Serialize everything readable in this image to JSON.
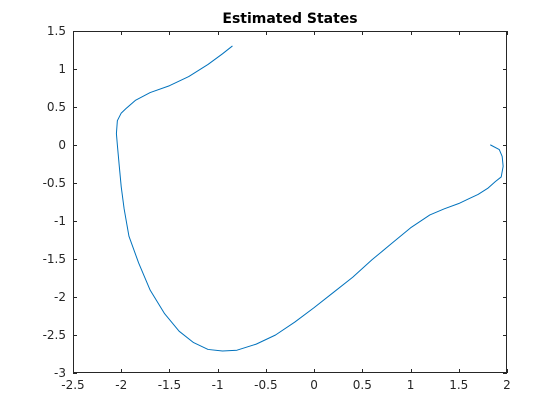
{
  "chart_data": {
    "type": "line",
    "title": "Estimated States",
    "xlabel": "",
    "ylabel": "",
    "xlim": [
      -2.5,
      2
    ],
    "ylim": [
      -3,
      1.5
    ],
    "grid": false,
    "xticks": [
      -2.5,
      -2,
      -1.5,
      -1,
      -0.5,
      0,
      0.5,
      1,
      1.5,
      2
    ],
    "xtick_labels": [
      "-2.5",
      "-2",
      "-1.5",
      "-1",
      "-0.5",
      "0",
      "0.5",
      "1",
      "1.5",
      "2"
    ],
    "yticks": [
      1.5,
      1,
      0.5,
      0,
      -0.5,
      -1,
      -1.5,
      -2,
      -2.5,
      -3
    ],
    "ytick_labels": [
      "1.5",
      "1",
      "0.5",
      "0",
      "-0.5",
      "-1",
      "-1.5",
      "-2",
      "-2.5",
      "-3"
    ],
    "series": [
      {
        "color": "#0072BD",
        "x": [
          1.83,
          1.92,
          1.95,
          1.96,
          1.94,
          1.88,
          1.8,
          1.7,
          1.6,
          1.5,
          1.35,
          1.2,
          1.0,
          0.8,
          0.6,
          0.4,
          0.2,
          0.0,
          -0.2,
          -0.4,
          -0.6,
          -0.8,
          -0.95,
          -1.1,
          -1.25,
          -1.4,
          -1.55,
          -1.7,
          -1.82,
          -1.92,
          -1.97,
          -2.0,
          -2.02,
          -2.04,
          -2.05,
          -2.04,
          -2.0,
          -1.95,
          -1.85,
          -1.7,
          -1.5,
          -1.3,
          -1.1,
          -0.95,
          -0.85
        ],
        "y": [
          0.0,
          -0.06,
          -0.15,
          -0.28,
          -0.42,
          -0.48,
          -0.57,
          -0.65,
          -0.71,
          -0.77,
          -0.84,
          -0.92,
          -1.09,
          -1.3,
          -1.51,
          -1.74,
          -1.94,
          -2.14,
          -2.33,
          -2.5,
          -2.62,
          -2.7,
          -2.71,
          -2.69,
          -2.6,
          -2.45,
          -2.22,
          -1.91,
          -1.55,
          -1.2,
          -0.84,
          -0.55,
          -0.28,
          0.0,
          0.15,
          0.32,
          0.42,
          0.48,
          0.59,
          0.69,
          0.78,
          0.9,
          1.06,
          1.2,
          1.3
        ]
      }
    ]
  }
}
